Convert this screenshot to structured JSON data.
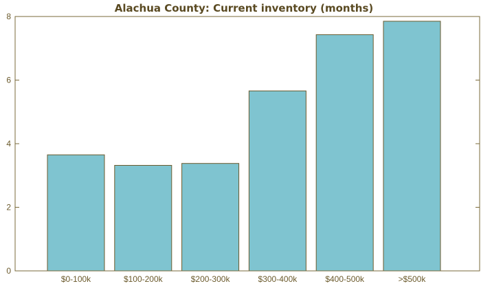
{
  "chart_data": {
    "type": "bar",
    "title": "Alachua County: Current inventory (months)",
    "xlabel": "",
    "ylabel": "",
    "categories": [
      "$0-100k",
      "$100-200k",
      "$200-300k",
      "$300-400k",
      "$400-500k",
      ">$500k"
    ],
    "values": [
      3.65,
      3.32,
      3.38,
      5.66,
      7.43,
      7.85
    ],
    "ylim": [
      0,
      8
    ],
    "yticks": [
      0,
      2,
      4,
      6,
      8
    ],
    "grid": false,
    "bar_color": "#7fc4d0",
    "edge_color": "#6b5a2c",
    "axis_color": "#7a6a3a"
  }
}
